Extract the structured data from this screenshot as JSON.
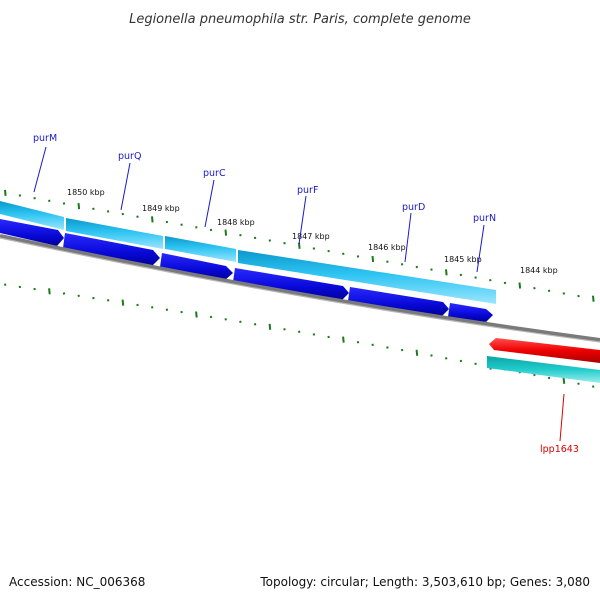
{
  "title": "Legionella pneumophila str. Paris, complete genome",
  "footer": {
    "accession": "Accession: NC_006368",
    "summary": "Topology: circular; Length: 3,503,610 bp; Genes: 3,080"
  },
  "colors": {
    "label_blue": "#1a1acc",
    "label_red": "#dd0000",
    "ruler_green": "#1a7a1a",
    "backbone": "#7a7a7a",
    "cds_blue": "#0a0ad8",
    "gene_cyan": "#22bbee",
    "red_feature": "#ee0000",
    "teal_feature": "#11bbbb"
  },
  "scale_labels": [
    "1850 kbp",
    "1849 kbp",
    "1848 kbp",
    "1847 kbp",
    "1846 kbp",
    "1845 kbp",
    "1844 kbp"
  ],
  "gene_labels": [
    {
      "name": "purM",
      "strand": "top"
    },
    {
      "name": "purQ",
      "strand": "top"
    },
    {
      "name": "purC",
      "strand": "top"
    },
    {
      "name": "purF",
      "strand": "top"
    },
    {
      "name": "purD",
      "strand": "top"
    },
    {
      "name": "purN",
      "strand": "top"
    },
    {
      "name": "lpp1643",
      "strand": "bottom"
    }
  ]
}
